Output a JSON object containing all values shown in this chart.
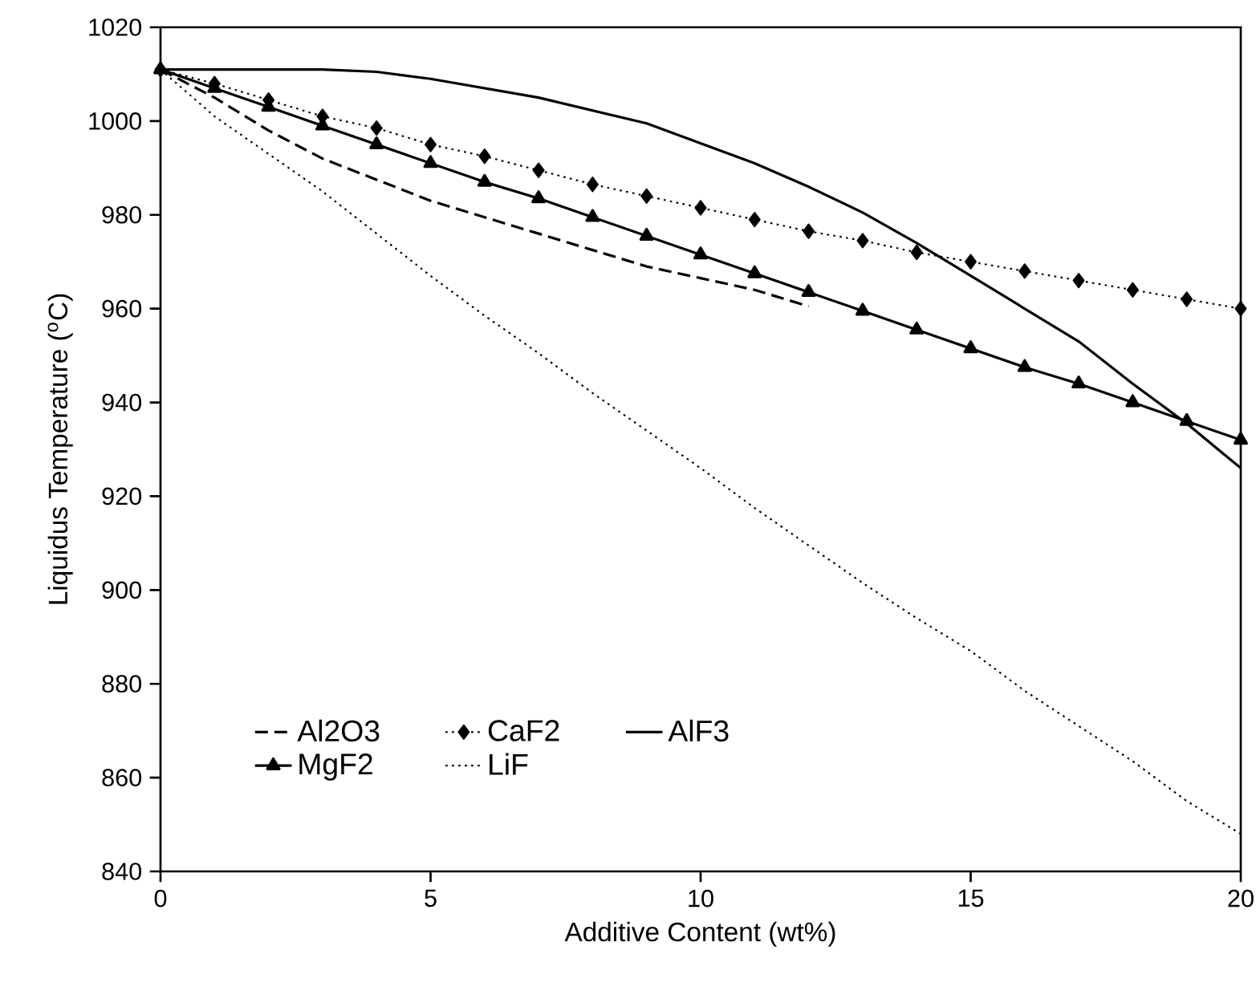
{
  "chart_data": {
    "type": "line",
    "xlabel": "Additive Content (wt%)",
    "ylabel": "Liquidus Temperature ($^{o}$C)",
    "x": [
      0,
      1,
      2,
      3,
      4,
      5,
      6,
      7,
      8,
      9,
      10,
      11,
      12,
      13,
      14,
      15,
      16,
      17,
      18,
      19,
      20
    ],
    "xlim": [
      0,
      20
    ],
    "xticks": [
      0,
      5,
      10,
      15,
      20
    ],
    "ylim": [
      840,
      1020
    ],
    "yticks": [
      840,
      860,
      880,
      900,
      920,
      940,
      960,
      980,
      1000,
      1020
    ],
    "grid": false,
    "legend": "bottom left",
    "series": [
      {
        "name": "Al2O3",
        "color": "#000000",
        "line_style": "dashed",
        "marker": "none",
        "x": [
          0,
          1,
          2,
          3,
          4,
          5,
          6,
          7,
          8,
          9,
          10,
          11,
          12
        ],
        "values": [
          1011,
          1005,
          998,
          992,
          987.5,
          983,
          979.5,
          976,
          972.5,
          969,
          966.5,
          964,
          960.5
        ]
      },
      {
        "name": "CaF2",
        "color": "#000000",
        "line_style": "dotted",
        "marker": "diamond",
        "values": [
          1011,
          1008,
          1004.5,
          1001,
          998.5,
          995,
          992.5,
          989.5,
          986.5,
          984,
          981.5,
          979,
          976.5,
          974.5,
          972,
          970,
          968,
          966,
          964,
          962,
          960
        ]
      },
      {
        "name": "AlF3",
        "color": "#000000",
        "line_style": "solid",
        "marker": "none",
        "x": [
          0,
          3,
          4,
          5,
          7,
          9,
          11,
          12,
          13,
          14,
          15,
          16,
          17,
          18,
          19,
          20
        ],
        "values": [
          1011,
          1011,
          1010.5,
          1009,
          1005,
          999.5,
          991,
          986,
          980.5,
          974,
          967,
          960,
          953,
          944,
          935.5,
          926
        ]
      },
      {
        "name": "MgF2",
        "color": "#000000",
        "line_style": "solid",
        "marker": "triangle",
        "values": [
          1011,
          1007,
          1003,
          999,
          995,
          991,
          987,
          983.5,
          979.5,
          975.5,
          971.5,
          967.5,
          963.5,
          959.5,
          955.5,
          951.5,
          947.5,
          944,
          940,
          936,
          932
        ]
      },
      {
        "name": "LiF",
        "color": "#000000",
        "line_style": "dotted",
        "marker": "none",
        "values": [
          1011,
          1001,
          993,
          985,
          976,
          967,
          958.5,
          950.5,
          942,
          934,
          926,
          917.5,
          909.5,
          901.5,
          894,
          887,
          878.5,
          871,
          863.5,
          855,
          848
        ]
      }
    ]
  }
}
